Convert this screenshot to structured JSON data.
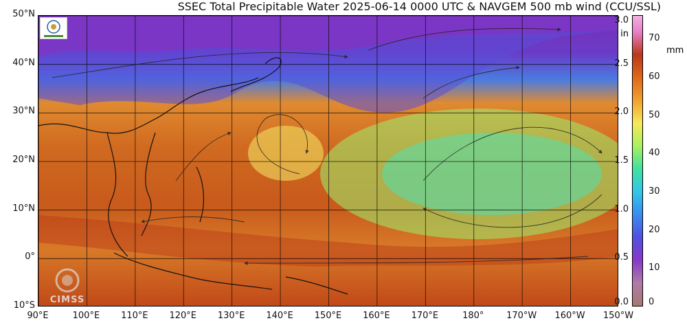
{
  "title": "SSEC Total Precipitable Water  2025-06-14 0000 UTC & NAVGEM 500 mb wind (CCU/SSL)",
  "lat_labels": [
    "50°N",
    "40°N",
    "30°N",
    "20°N",
    "10°N",
    "0°",
    "10°S"
  ],
  "lat_values": [
    50,
    40,
    30,
    20,
    10,
    0,
    -10
  ],
  "lon_labels": [
    "90°E",
    "100°E",
    "110°E",
    "120°E",
    "130°E",
    "140°E",
    "150°E",
    "160°E",
    "170°E",
    "180°",
    "170°W",
    "160°W",
    "150°W"
  ],
  "lon_values": [
    90,
    100,
    110,
    120,
    130,
    140,
    150,
    160,
    170,
    180,
    190,
    200,
    210
  ],
  "colorbar": {
    "unit_in": "in",
    "unit_mm": "mm",
    "in_ticks": [
      "3.0",
      "2.5",
      "2.0",
      "1.5",
      "1.0",
      "0.5",
      "0.0"
    ],
    "in_values": [
      3.0,
      2.5,
      2.0,
      1.5,
      1.0,
      0.5,
      0.0
    ],
    "mm_ticks": [
      "70",
      "60",
      "50",
      "40",
      "30",
      "20",
      "10",
      "0"
    ],
    "mm_values": [
      70,
      60,
      50,
      40,
      30,
      20,
      10,
      0
    ],
    "range_mm": [
      0,
      76.2
    ],
    "stops": [
      {
        "mm": 0,
        "color": "#a87870"
      },
      {
        "mm": 6,
        "color": "#b07aa8"
      },
      {
        "mm": 12,
        "color": "#8a38c8"
      },
      {
        "mm": 18,
        "color": "#5050e0"
      },
      {
        "mm": 24,
        "color": "#3a8cf0"
      },
      {
        "mm": 30,
        "color": "#30c8e8"
      },
      {
        "mm": 36,
        "color": "#40e0a0"
      },
      {
        "mm": 42,
        "color": "#a8f060"
      },
      {
        "mm": 48,
        "color": "#f8e858"
      },
      {
        "mm": 54,
        "color": "#f0a030"
      },
      {
        "mm": 60,
        "color": "#e06818"
      },
      {
        "mm": 66,
        "color": "#b83818"
      },
      {
        "mm": 72,
        "color": "#e880c8"
      },
      {
        "mm": 76.2,
        "color": "#f0b0e0"
      }
    ]
  },
  "logo_text": "CIMSS"
}
